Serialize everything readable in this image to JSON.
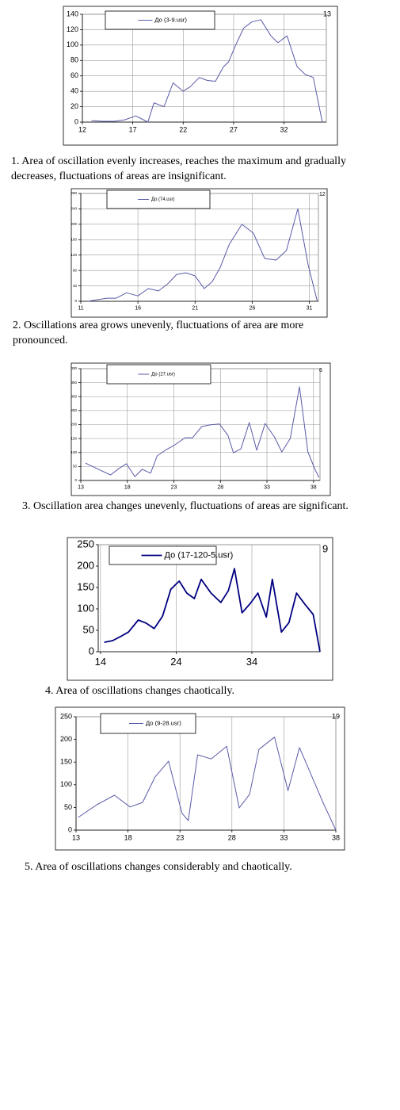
{
  "chart_data": [
    {
      "type": "line",
      "legend": "До (3-9.usr)",
      "annotation": "13",
      "grid": "both",
      "color": "#5a5aa8",
      "caption": "1. Area of oscillation evenly increases, reaches the maximum and gradually decreases, fluctuations of areas are insignificant.",
      "xlim": [
        12,
        36.2
      ],
      "xticks": [
        12,
        17,
        22,
        27,
        32
      ],
      "ylim": [
        0,
        140
      ],
      "yticks": [
        0,
        20,
        40,
        60,
        80,
        100,
        120,
        140
      ],
      "series": [
        {
          "name": "До (3-9.usr)",
          "color": "#5a5aa8",
          "x": [
            12.9,
            14.0,
            15.2,
            16.2,
            17.3,
            18.5,
            19.1,
            20.1,
            21.0,
            22.0,
            22.7,
            23.6,
            24.4,
            25.2,
            26.0,
            26.5,
            27.2,
            28.0,
            28.8,
            29.7,
            30.7,
            31.4,
            32.3,
            33.3,
            34.1,
            34.9,
            35.8
          ],
          "values": [
            2,
            1,
            1,
            3,
            8,
            0,
            25,
            20,
            51,
            40,
            46,
            58,
            54,
            53,
            72,
            78,
            100,
            122,
            130,
            133,
            112,
            103,
            112,
            72,
            62,
            58,
            0
          ]
        }
      ]
    },
    {
      "type": "line",
      "legend": "До (74.usr)",
      "annotation": "12",
      "grid": "both",
      "color": "#5a5aa8",
      "caption": "2. Oscillations area grows unevenly, fluctuations of area are more pronounced.",
      "xlim": [
        11,
        31.8
      ],
      "xticks": [
        11,
        16,
        21,
        26,
        31
      ],
      "ylim": [
        0,
        280
      ],
      "yticks": [
        0,
        40,
        80,
        120,
        160,
        200,
        240,
        280
      ],
      "series": [
        {
          "name": "До (74.usr)",
          "color": "#5a5aa8",
          "x": [
            11.6,
            13.3,
            14.1,
            15.0,
            16.0,
            16.9,
            17.8,
            18.6,
            19.4,
            20.2,
            21.0,
            21.8,
            22.5,
            23.2,
            24.0,
            25.1,
            26.1,
            27.1,
            28.1,
            29.0,
            30.0,
            30.9,
            31.7
          ],
          "values": [
            0,
            8,
            8,
            22,
            14,
            33,
            27,
            45,
            70,
            74,
            66,
            33,
            51,
            88,
            148,
            200,
            177,
            111,
            107,
            132,
            240,
            95,
            0
          ]
        }
      ]
    },
    {
      "type": "line",
      "legend": "До (27.usr)",
      "annotation": "6",
      "grid": "both",
      "color": "#5a5aa8",
      "caption": "3. Oscillation area changes unevenly, fluctuations of areas are significant.",
      "xlim": [
        13,
        38.7
      ],
      "xticks": [
        13,
        18,
        23,
        28,
        33,
        38
      ],
      "ylim": [
        0,
        400
      ],
      "yticks": [
        0,
        50,
        100,
        150,
        200,
        250,
        300,
        350,
        400
      ],
      "series": [
        {
          "name": "До (27.usr)",
          "color": "#5a5aa8",
          "x": [
            13.5,
            14.9,
            16.2,
            17.1,
            17.9,
            18.8,
            19.6,
            20.5,
            21.2,
            22.2,
            23.0,
            24.2,
            25.0,
            26.0,
            26.9,
            27.9,
            28.8,
            29.4,
            30.2,
            31.1,
            31.9,
            32.8,
            33.8,
            34.6,
            35.5,
            36.5,
            37.4,
            38.2,
            38.6
          ],
          "values": [
            62,
            40,
            20,
            43,
            60,
            14,
            40,
            26,
            88,
            111,
            125,
            153,
            153,
            193,
            199,
            202,
            162,
            99,
            113,
            207,
            108,
            204,
            156,
            102,
            150,
            335,
            102,
            37,
            11
          ]
        }
      ]
    },
    {
      "type": "line",
      "legend": "До (17-120-5.usr)",
      "annotation": "9",
      "grid": "x",
      "color": "#000080",
      "caption": "4. Area of oscillations changes chaotically.",
      "xlim": [
        13.7,
        43
      ],
      "xticks": [
        14,
        24,
        34
      ],
      "ylim": [
        0,
        250
      ],
      "yticks": [
        0,
        50,
        100,
        150,
        200,
        250
      ],
      "series": [
        {
          "name": "До (17-120-5.usr)",
          "color": "#000080",
          "x": [
            14.5,
            15.6,
            16.6,
            17.7,
            19.0,
            20.0,
            21.1,
            22.2,
            23.3,
            24.4,
            25.4,
            26.4,
            27.3,
            28.6,
            29.9,
            30.9,
            31.7,
            32.7,
            33.8,
            34.8,
            35.9,
            36.7,
            37.9,
            38.9,
            39.9,
            41.0,
            42.1,
            43.0
          ],
          "values": [
            22,
            26,
            35,
            46,
            74,
            67,
            54,
            83,
            146,
            165,
            137,
            124,
            169,
            137,
            115,
            143,
            194,
            91,
            113,
            137,
            81,
            169,
            46,
            68,
            137,
            111,
            87,
            0
          ]
        }
      ]
    },
    {
      "type": "line",
      "legend": "До (9-28.usr)",
      "annotation": "19",
      "grid": "x",
      "color": "#5a5aa8",
      "caption": "5. Area of oscillations changes considerably and chaotically.",
      "xlim": [
        13,
        38
      ],
      "xticks": [
        13,
        18,
        23,
        28,
        33,
        38
      ],
      "ylim": [
        0,
        250
      ],
      "yticks": [
        0,
        50,
        100,
        150,
        200,
        250
      ],
      "series": [
        {
          "name": "До (9-28.usr)",
          "color": "#5a5aa8",
          "x": [
            13.2,
            15.0,
            16.7,
            18.2,
            19.4,
            20.6,
            21.9,
            23.2,
            23.8,
            24.7,
            26.0,
            27.5,
            28.7,
            29.7,
            30.6,
            32.1,
            33.4,
            34.5,
            36.8,
            38.0
          ],
          "values": [
            28,
            56,
            77,
            51,
            61,
            117,
            152,
            37,
            21,
            166,
            157,
            185,
            49,
            79,
            178,
            205,
            87,
            182,
            59,
            0
          ]
        }
      ]
    }
  ]
}
